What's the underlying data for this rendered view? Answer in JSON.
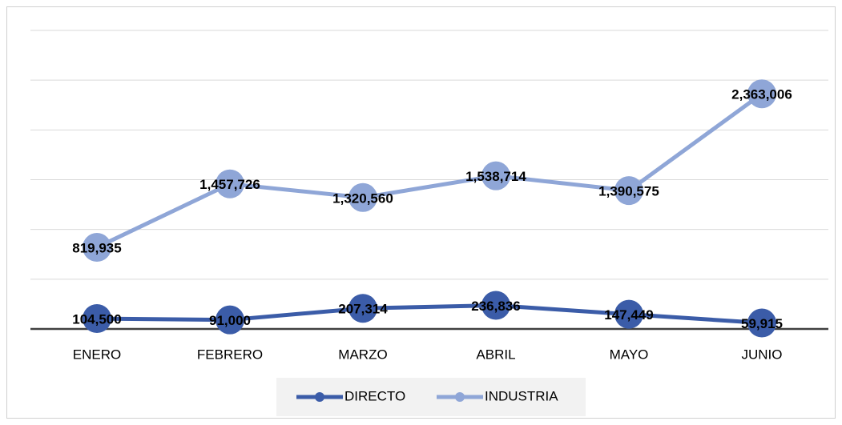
{
  "chart_data": {
    "type": "line",
    "categories": [
      "ENERO",
      "FEBRERO",
      "MARZO",
      "ABRIL",
      "MAYO",
      "JUNIO"
    ],
    "series": [
      {
        "name": "DIRECTO",
        "color": "#3b5ca8",
        "values": [
          104500,
          91000,
          207314,
          236836,
          147449,
          59915
        ],
        "value_labels": [
          "104,500",
          "91,000",
          "207,314",
          "236,836",
          "147,449",
          "59,915"
        ]
      },
      {
        "name": "INDUSTRIA",
        "color": "#8fa6d7",
        "values": [
          819935,
          1457726,
          1320560,
          1538714,
          1390575,
          2363006
        ],
        "value_labels": [
          "819,935",
          "1,457,726",
          "1,320,560",
          "1,538,714",
          "1,390,575",
          "2,363,006"
        ]
      }
    ],
    "ylim": [
      0,
      3000000
    ],
    "yticks": [
      0,
      500000,
      1000000,
      1500000,
      2000000,
      2500000,
      3000000
    ],
    "grid": true,
    "legend": "bottom"
  }
}
